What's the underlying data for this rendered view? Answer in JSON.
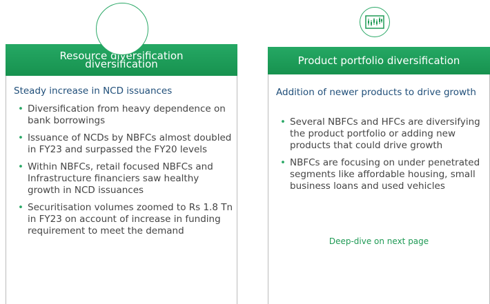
{
  "left": {
    "title": "Resource diversification diversification",
    "subtitle": "Steady increase in NCD issuances",
    "bullets": [
      "Diversification from heavy dependence on bank borrowings",
      "Issuance of NCDs by NBFCs almost doubled in FY23 and surpassed the FY20 levels",
      "Within NBFCs, retail focused NBFCs and Infrastructure financiers saw healthy growth in NCD issuances",
      "Securitisation volumes zoomed to Rs 1.8 Tn in FY23 on account of increase in funding requirement to meet the demand"
    ]
  },
  "right": {
    "title": "Product portfolio diversification",
    "subtitle": "Addition of newer products to drive growth",
    "bullets": [
      "Several NBFCs and HFCs are diversifying the product portfolio or adding new products that could drive growth",
      "NBFCs are focusing on under penetrated segments like affordable housing, small business loans and used vehicles"
    ],
    "link": "Deep-dive on next page"
  }
}
